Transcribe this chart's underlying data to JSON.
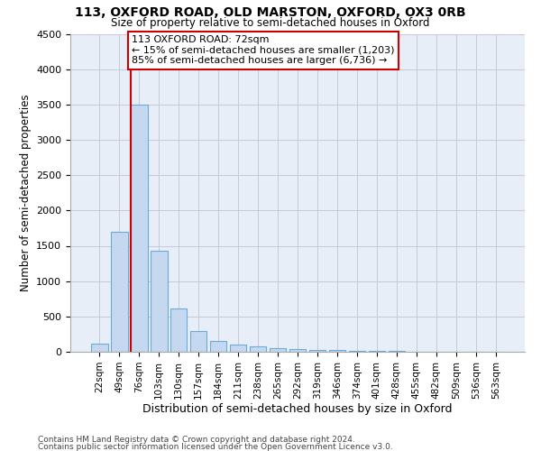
{
  "title_line1": "113, OXFORD ROAD, OLD MARSTON, OXFORD, OX3 0RB",
  "title_line2": "Size of property relative to semi-detached houses in Oxford",
  "xlabel": "Distribution of semi-detached houses by size in Oxford",
  "ylabel": "Number of semi-detached properties",
  "footnote1": "Contains HM Land Registry data © Crown copyright and database right 2024.",
  "footnote2": "Contains public sector information licensed under the Open Government Licence v3.0.",
  "bar_labels": [
    "22sqm",
    "49sqm",
    "76sqm",
    "103sqm",
    "130sqm",
    "157sqm",
    "184sqm",
    "211sqm",
    "238sqm",
    "265sqm",
    "292sqm",
    "319sqm",
    "346sqm",
    "374sqm",
    "401sqm",
    "428sqm",
    "455sqm",
    "482sqm",
    "509sqm",
    "536sqm",
    "563sqm"
  ],
  "bar_values": [
    120,
    1700,
    3500,
    1430,
    610,
    290,
    150,
    100,
    80,
    55,
    40,
    30,
    20,
    15,
    10,
    8,
    5,
    4,
    3,
    2,
    2
  ],
  "bar_color": "#c5d8f0",
  "bar_edge_color": "#6aaad4",
  "grid_color": "#c8c8d8",
  "background_color": "#e8eef8",
  "marker_line_color": "#cc0000",
  "annotation_text": "113 OXFORD ROAD: 72sqm\n← 15% of semi-detached houses are smaller (1,203)\n85% of semi-detached houses are larger (6,736) →",
  "annotation_box_color": "#cc0000",
  "ylim": [
    0,
    4500
  ],
  "yticks": [
    0,
    500,
    1000,
    1500,
    2000,
    2500,
    3000,
    3500,
    4000,
    4500
  ]
}
